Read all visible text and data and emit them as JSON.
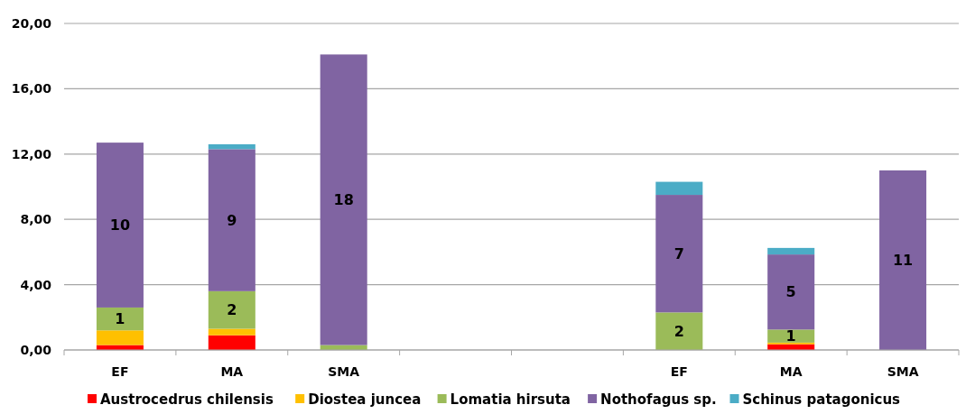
{
  "chart_data": {
    "type": "bar",
    "stacked": true,
    "categories": [
      "EF",
      "MA",
      "SMA",
      null,
      null,
      "EF",
      "MA",
      "SMA"
    ],
    "series": [
      {
        "name": "Austrocedrus chilensis",
        "color": "#ff0000",
        "values": [
          0.3,
          0.9,
          null,
          null,
          null,
          null,
          0.35,
          null
        ]
      },
      {
        "name": "Diostea juncea",
        "color": "#ffc000",
        "values": [
          0.9,
          0.4,
          null,
          null,
          null,
          null,
          0.1,
          null
        ]
      },
      {
        "name": "Lomatia hirsuta",
        "color": "#9bbb59",
        "values": [
          1.4,
          2.3,
          0.3,
          null,
          null,
          2.3,
          0.8,
          null
        ],
        "value_labels": [
          "1",
          "2",
          null,
          null,
          null,
          "2",
          "1",
          null
        ]
      },
      {
        "name": "Nothofagus sp.",
        "color": "#8064a2",
        "values": [
          10.1,
          8.7,
          17.8,
          null,
          null,
          7.2,
          4.6,
          11.0
        ],
        "value_labels": [
          "10",
          "9",
          "18",
          null,
          null,
          "7",
          "5",
          "11"
        ]
      },
      {
        "name": "Schinus patagonicus",
        "color": "#4bacc6",
        "values": [
          null,
          0.3,
          null,
          null,
          null,
          0.8,
          0.4,
          null
        ]
      }
    ],
    "ylim": [
      0,
      20
    ],
    "yticks": [
      {
        "value": 0,
        "label": "0,00"
      },
      {
        "value": 4,
        "label": "4,00"
      },
      {
        "value": 8,
        "label": "8,00"
      },
      {
        "value": 12,
        "label": "12,00"
      },
      {
        "value": 16,
        "label": "16,00"
      },
      {
        "value": 20,
        "label": "20,00"
      }
    ],
    "grid": "y",
    "legend": "bottom"
  }
}
